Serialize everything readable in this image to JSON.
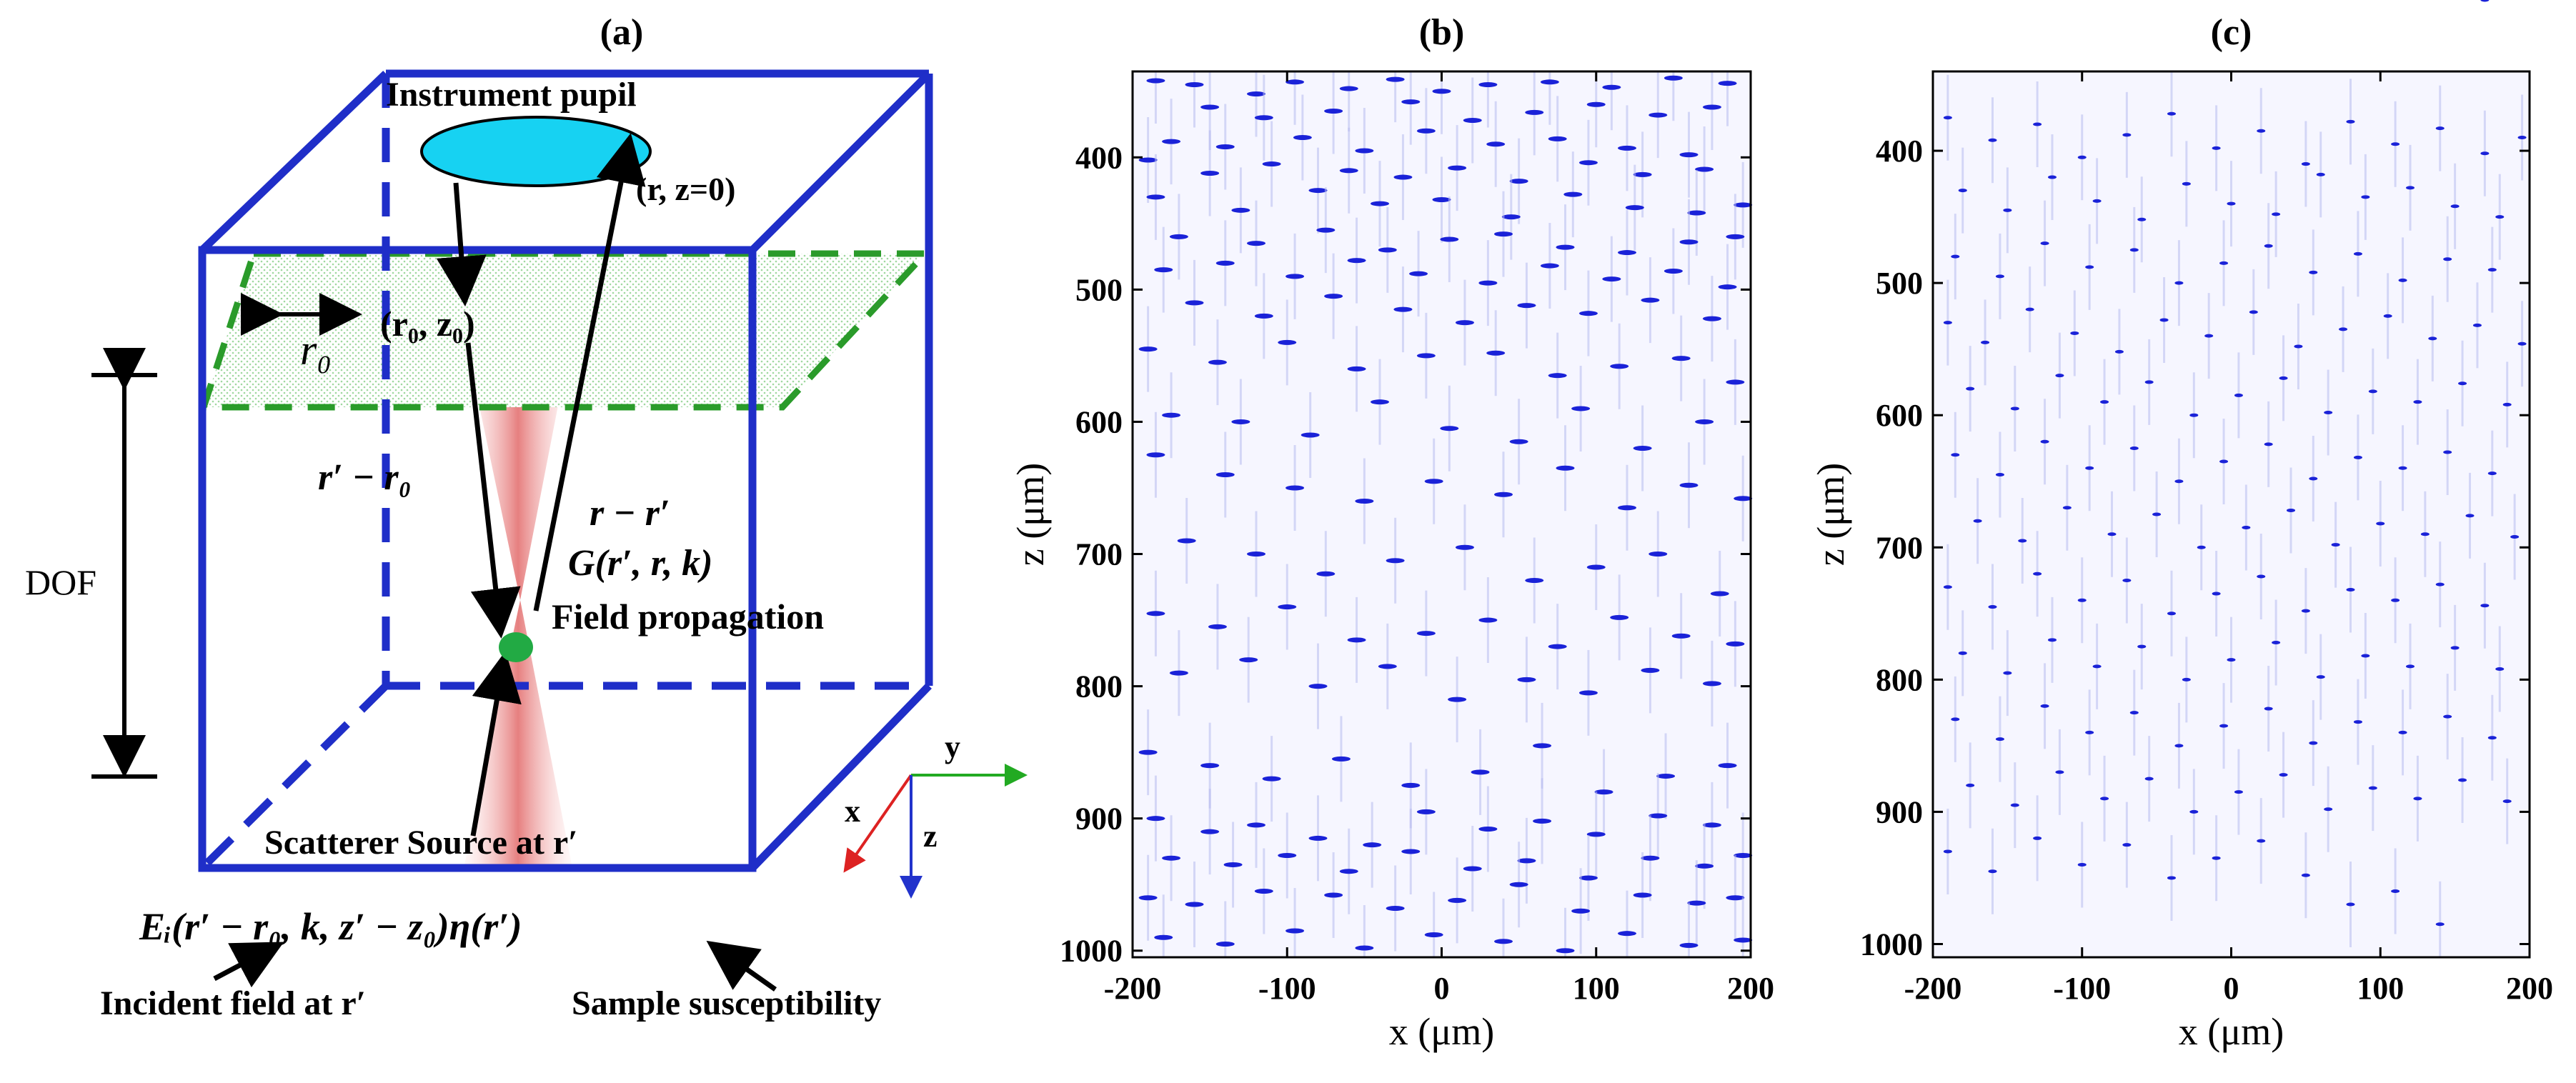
{
  "colors": {
    "box": "#1f2ec8",
    "plane": "#2a9b2a",
    "pupil": "#17d2f2",
    "scatterer": "#22aa44",
    "beam": "#f2a0a0",
    "axis_y": "#22aa22",
    "axis_x": "#dd2222",
    "axis_z": "#2233cc",
    "points": "#1a22d8"
  },
  "panel_a": {
    "label": "(a)",
    "pupil": "Instrument pupil",
    "r_z0": "(r,  z=0)",
    "r0z0": "(r₀, z₀)",
    "r0": "r₀",
    "r_prime_minus_r0": "r′ − r₀",
    "r_minus_r_prime": "r − r′",
    "green_fn": "G(r′, r, k)",
    "field_propagation": "Field propagation",
    "dof": "DOF",
    "scatterer_source": "Scatterer Source at r′",
    "equation": "Eᵢ(r′ − r₀, k, z′ − z₀)η(r′)",
    "incident": "Incident field at r′",
    "susceptibility": "Sample susceptibility",
    "axis_y": "y",
    "axis_x": "x",
    "axis_z": "z"
  },
  "chart_data": [
    {
      "type": "scatter",
      "label": "(b)",
      "title": "",
      "xlabel": "x (μm)",
      "ylabel": "z (μm)",
      "xlim": [
        -200,
        200
      ],
      "ylim": [
        1005,
        335
      ],
      "xticks": [
        -200,
        -100,
        0,
        100,
        200
      ],
      "xticklabels": [
        "-200",
        "-100",
        "0",
        "100",
        "200"
      ],
      "yticks": [
        400,
        500,
        600,
        700,
        800,
        900,
        1000
      ],
      "yticklabels": [
        "400",
        "500",
        "600",
        "700",
        "800",
        "900",
        "1000"
      ],
      "series": [
        {
          "name": "scatterers",
          "x": [
            -185,
            -160,
            -120,
            -95,
            -60,
            -30,
            0,
            30,
            70,
            110,
            150,
            185,
            -150,
            -115,
            -70,
            -20,
            20,
            60,
            100,
            140,
            175,
            -175,
            -140,
            -90,
            -50,
            -10,
            35,
            75,
            120,
            160,
            -190,
            -150,
            -110,
            -60,
            -25,
            10,
            50,
            95,
            130,
            170,
            -185,
            -130,
            -80,
            -40,
            0,
            45,
            85,
            125,
            165,
            195,
            -170,
            -120,
            -75,
            -35,
            5,
            40,
            80,
            120,
            160,
            190,
            -180,
            -140,
            -95,
            -55,
            -15,
            30,
            70,
            110,
            150,
            185,
            -160,
            -115,
            -70,
            -25,
            15,
            55,
            95,
            135,
            175,
            -190,
            -145,
            -100,
            -55,
            -10,
            35,
            75,
            115,
            155,
            190,
            -175,
            -130,
            -85,
            -40,
            5,
            50,
            90,
            130,
            170,
            -185,
            -140,
            -95,
            -50,
            -5,
            40,
            80,
            120,
            160,
            195,
            -165,
            -120,
            -75,
            -30,
            15,
            60,
            100,
            140,
            180,
            -185,
            -145,
            -100,
            -55,
            -10,
            30,
            75,
            115,
            155,
            190,
            -170,
            -125,
            -80,
            -35,
            10,
            55,
            95,
            135,
            175,
            -190,
            -150,
            -110,
            -65,
            -20,
            25,
            65,
            105,
            145,
            185
          ],
          "z": [
            342,
            345,
            352,
            343,
            348,
            341,
            350,
            345,
            343,
            347,
            340,
            344,
            362,
            370,
            365,
            358,
            372,
            366,
            360,
            368,
            362,
            388,
            392,
            385,
            395,
            380,
            390,
            386,
            393,
            398,
            402,
            412,
            405,
            410,
            415,
            408,
            418,
            404,
            413,
            409,
            430,
            440,
            425,
            435,
            432,
            445,
            428,
            438,
            442,
            436,
            460,
            465,
            455,
            470,
            462,
            458,
            468,
            472,
            464,
            460,
            485,
            480,
            490,
            478,
            488,
            495,
            482,
            492,
            486,
            498,
            510,
            520,
            505,
            515,
            525,
            512,
            518,
            508,
            522,
            545,
            555,
            540,
            560,
            550,
            548,
            565,
            558,
            552,
            570,
            595,
            600,
            610,
            585,
            605,
            615,
            590,
            620,
            600,
            625,
            640,
            650,
            660,
            645,
            655,
            635,
            665,
            648,
            658,
            690,
            700,
            715,
            705,
            695,
            720,
            710,
            700,
            730,
            745,
            755,
            740,
            765,
            760,
            750,
            770,
            748,
            762,
            768,
            790,
            780,
            800,
            785,
            810,
            795,
            805,
            788,
            798,
            850,
            860,
            870,
            855,
            875,
            865,
            845,
            880,
            868,
            860
          ]
        },
        {
          "name": "scatterers-lower",
          "x": [
            -185,
            -150,
            -120,
            -80,
            -45,
            -10,
            30,
            65,
            100,
            140,
            175,
            -175,
            -135,
            -100,
            -60,
            -20,
            20,
            55,
            95,
            135,
            170,
            195,
            -190,
            -160,
            -115,
            -70,
            -30,
            10,
            50,
            90,
            130,
            165,
            190,
            -180,
            -140,
            -95,
            -50,
            -5,
            40,
            80,
            120,
            160,
            195
          ],
          "z": [
            900,
            910,
            905,
            915,
            920,
            895,
            908,
            902,
            912,
            898,
            905,
            930,
            935,
            928,
            940,
            925,
            938,
            932,
            945,
            930,
            936,
            928,
            960,
            965,
            955,
            958,
            968,
            962,
            950,
            970,
            958,
            964,
            960,
            990,
            995,
            985,
            998,
            988,
            993,
            1000,
            987,
            996,
            992
          ]
        }
      ]
    },
    {
      "type": "scatter",
      "label": "(c)",
      "title": "",
      "xlabel": "x (μm)",
      "ylabel": "z (μm)",
      "xlim": [
        -200,
        200
      ],
      "ylim": [
        1010,
        340
      ],
      "xticks": [
        -200,
        -100,
        0,
        100,
        200
      ],
      "xticklabels": [
        "-200",
        "-100",
        "0",
        "100",
        "200"
      ],
      "yticks": [
        400,
        500,
        600,
        700,
        800,
        900,
        1000
      ],
      "yticklabels": [
        "400",
        "500",
        "600",
        "700",
        "800",
        "900",
        "1000"
      ],
      "series": [
        {
          "name": "scatterers",
          "x": [
            -190,
            -160,
            -130,
            -100,
            -70,
            -40,
            -10,
            20,
            50,
            80,
            110,
            140,
            170,
            195,
            -180,
            -150,
            -120,
            -90,
            -60,
            -30,
            0,
            30,
            60,
            90,
            120,
            150,
            180,
            -185,
            -155,
            -125,
            -95,
            -65,
            -35,
            -5,
            25,
            55,
            85,
            115,
            145,
            175,
            -190,
            -165,
            -135,
            -105,
            -75,
            -45,
            -15,
            15,
            45,
            75,
            105,
            135,
            165,
            195,
            -175,
            -145,
            -115,
            -85,
            -55,
            -25,
            5,
            35,
            65,
            95,
            125,
            155,
            185,
            -185,
            -155,
            -125,
            -95,
            -65,
            -35,
            -5,
            25,
            55,
            85,
            115,
            145,
            175,
            -170,
            -140,
            -110,
            -80,
            -50,
            -20,
            10,
            40,
            70,
            100,
            130,
            160,
            190,
            -190,
            -160,
            -130,
            -100,
            -70,
            -40,
            -10,
            20,
            50,
            80,
            110,
            140,
            170,
            -180,
            -150,
            -120,
            -90,
            -60,
            -30,
            0,
            30,
            60,
            90,
            120,
            150,
            180,
            -185,
            -155,
            -125,
            -95,
            -65,
            -35,
            -5,
            25,
            55,
            85,
            115,
            145,
            175,
            -175,
            -145,
            -115,
            -85,
            -55,
            -25,
            5,
            35,
            65,
            95,
            125,
            155,
            185,
            -190,
            -160,
            -130,
            -100,
            -70,
            -40,
            -10,
            20,
            50,
            80,
            110,
            140,
            170
          ],
          "z": [
            375,
            392,
            380,
            405,
            388,
            372,
            398,
            385,
            410,
            378,
            395,
            383,
            402,
            390,
            430,
            445,
            420,
            438,
            452,
            425,
            440,
            448,
            418,
            435,
            428,
            442,
            450,
            480,
            495,
            470,
            488,
            475,
            500,
            485,
            472,
            492,
            478,
            498,
            482,
            490,
            530,
            545,
            520,
            538,
            552,
            528,
            540,
            522,
            548,
            535,
            525,
            542,
            532,
            546,
            580,
            595,
            570,
            590,
            575,
            600,
            585,
            572,
            598,
            582,
            590,
            576,
            592,
            630,
            645,
            620,
            640,
            625,
            650,
            635,
            622,
            648,
            632,
            640,
            628,
            644,
            680,
            695,
            670,
            690,
            675,
            700,
            685,
            672,
            698,
            682,
            690,
            676,
            692,
            730,
            745,
            720,
            740,
            725,
            750,
            735,
            722,
            748,
            732,
            740,
            728,
            744,
            780,
            795,
            770,
            790,
            775,
            800,
            785,
            772,
            798,
            782,
            790,
            776,
            792,
            830,
            845,
            820,
            840,
            825,
            850,
            835,
            822,
            848,
            832,
            840,
            828,
            844,
            880,
            895,
            870,
            890,
            875,
            900,
            885,
            872,
            898,
            882,
            890,
            876,
            892,
            930,
            945,
            920,
            940,
            925,
            950,
            935,
            922,
            948,
            970,
            960,
            985
          ]
        }
      ]
    }
  ]
}
